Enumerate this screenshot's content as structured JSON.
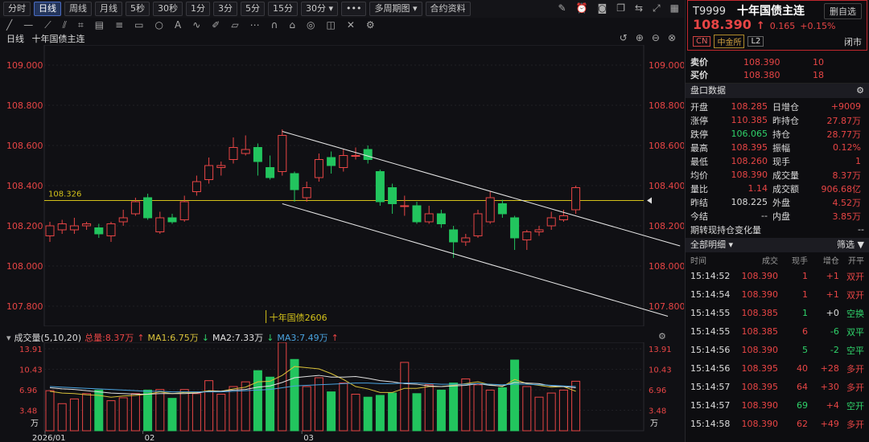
{
  "toolbar": {
    "buttons": [
      "分时",
      "日线",
      "周线",
      "月线",
      "5秒",
      "30秒",
      "1分",
      "3分",
      "5分",
      "15分",
      "30分 ▾",
      "•••",
      "多周期图 ▾",
      "合约资料"
    ],
    "active_index": 1
  },
  "chart_title": {
    "period": "日线",
    "name": "十年国债主连"
  },
  "colors": {
    "up": "#e84545",
    "down": "#22c55e",
    "accent": "#4a6cc2",
    "hline": "#d4c21a"
  },
  "chart_data": {
    "type": "candlestick",
    "y_ticks": [
      "109.000",
      "108.800",
      "108.600",
      "108.400",
      "108.200",
      "108.000",
      "107.800"
    ],
    "y_tick_values": [
      109.0,
      108.8,
      108.6,
      108.4,
      108.2,
      108.0,
      107.8
    ],
    "ylim": [
      107.7,
      109.1
    ],
    "x_labels": [
      {
        "label": "2026/01",
        "index": 0
      },
      {
        "label": "02",
        "index": 8
      },
      {
        "label": "03",
        "index": 21
      }
    ],
    "hline": {
      "value": 108.326,
      "label": "108.326"
    },
    "contract_marker": {
      "label": "十年国债2606",
      "index": 18
    },
    "candles": [
      {
        "o": 108.15,
        "c": 108.2,
        "h": 108.22,
        "l": 108.12
      },
      {
        "o": 108.18,
        "c": 108.21,
        "h": 108.23,
        "l": 108.16
      },
      {
        "o": 108.18,
        "c": 108.2,
        "h": 108.24,
        "l": 108.16
      },
      {
        "o": 108.2,
        "c": 108.21,
        "h": 108.22,
        "l": 108.18
      },
      {
        "o": 108.19,
        "c": 108.16,
        "h": 108.21,
        "l": 108.14
      },
      {
        "o": 108.15,
        "c": 108.21,
        "h": 108.22,
        "l": 108.12
      },
      {
        "o": 108.22,
        "c": 108.24,
        "h": 108.28,
        "l": 108.2
      },
      {
        "o": 108.26,
        "c": 108.32,
        "h": 108.34,
        "l": 108.25
      },
      {
        "o": 108.34,
        "c": 108.24,
        "h": 108.36,
        "l": 108.23
      },
      {
        "o": 108.17,
        "c": 108.24,
        "h": 108.27,
        "l": 108.16
      },
      {
        "o": 108.24,
        "c": 108.22,
        "h": 108.26,
        "l": 108.21
      },
      {
        "o": 108.23,
        "c": 108.32,
        "h": 108.35,
        "l": 108.22
      },
      {
        "o": 108.37,
        "c": 108.42,
        "h": 108.45,
        "l": 108.35
      },
      {
        "o": 108.43,
        "c": 108.5,
        "h": 108.54,
        "l": 108.41
      },
      {
        "o": 108.49,
        "c": 108.5,
        "h": 108.52,
        "l": 108.45
      },
      {
        "o": 108.53,
        "c": 108.59,
        "h": 108.64,
        "l": 108.51
      },
      {
        "o": 108.56,
        "c": 108.58,
        "h": 108.65,
        "l": 108.55
      },
      {
        "o": 108.59,
        "c": 108.52,
        "h": 108.61,
        "l": 108.45
      },
      {
        "o": 108.49,
        "c": 108.44,
        "h": 108.55,
        "l": 108.43
      },
      {
        "o": 108.47,
        "c": 108.65,
        "h": 108.68,
        "l": 108.45
      },
      {
        "o": 108.46,
        "c": 108.38,
        "h": 108.47,
        "l": 108.32
      },
      {
        "o": 108.34,
        "c": 108.39,
        "h": 108.42,
        "l": 108.32
      },
      {
        "o": 108.44,
        "c": 108.53,
        "h": 108.56,
        "l": 108.42
      },
      {
        "o": 108.54,
        "c": 108.5,
        "h": 108.57,
        "l": 108.46
      },
      {
        "o": 108.49,
        "c": 108.55,
        "h": 108.58,
        "l": 108.47
      },
      {
        "o": 108.55,
        "c": 108.55,
        "h": 108.59,
        "l": 108.53
      },
      {
        "o": 108.58,
        "c": 108.53,
        "h": 108.6,
        "l": 108.51
      },
      {
        "o": 108.47,
        "c": 108.32,
        "h": 108.48,
        "l": 108.3
      },
      {
        "o": 108.39,
        "c": 108.31,
        "h": 108.41,
        "l": 108.26
      },
      {
        "o": 108.3,
        "c": 108.3,
        "h": 108.35,
        "l": 108.25
      },
      {
        "o": 108.3,
        "c": 108.22,
        "h": 108.32,
        "l": 108.21
      },
      {
        "o": 108.22,
        "c": 108.26,
        "h": 108.3,
        "l": 108.21
      },
      {
        "o": 108.26,
        "c": 108.21,
        "h": 108.28,
        "l": 108.19
      },
      {
        "o": 108.18,
        "c": 108.12,
        "h": 108.2,
        "l": 108.04
      },
      {
        "o": 108.12,
        "c": 108.14,
        "h": 108.16,
        "l": 108.1
      },
      {
        "o": 108.15,
        "c": 108.26,
        "h": 108.28,
        "l": 108.14
      },
      {
        "o": 108.22,
        "c": 108.34,
        "h": 108.37,
        "l": 108.21
      },
      {
        "o": 108.31,
        "c": 108.26,
        "h": 108.33,
        "l": 108.24
      },
      {
        "o": 108.24,
        "c": 108.14,
        "h": 108.25,
        "l": 108.08
      },
      {
        "o": 108.13,
        "c": 108.17,
        "h": 108.18,
        "l": 108.08
      },
      {
        "o": 108.17,
        "c": 108.18,
        "h": 108.2,
        "l": 108.15
      },
      {
        "o": 108.2,
        "c": 108.24,
        "h": 108.27,
        "l": 108.18
      },
      {
        "o": 108.23,
        "c": 108.25,
        "h": 108.28,
        "l": 108.22
      },
      {
        "o": 108.28,
        "c": 108.39,
        "h": 108.4,
        "l": 108.26
      }
    ],
    "channel": [
      {
        "from": {
          "i": 19,
          "v": 108.67
        },
        "to": {
          "i": 51,
          "v": 108.1
        }
      },
      {
        "from": {
          "i": 19,
          "v": 108.31
        },
        "to": {
          "i": 50,
          "v": 107.75
        }
      }
    ],
    "volume": {
      "label": "成交量(5,10,20)",
      "total_label": "总量:8.37万",
      "ma1": "MA1:6.75万",
      "ma2": "MA2:7.33万",
      "ma3": "MA3:7.49万",
      "y_ticks": [
        "13.91",
        "10.43",
        "6.96",
        "3.48"
      ],
      "y_tick_values": [
        13.91,
        10.43,
        6.96,
        3.48
      ],
      "unit": "万",
      "ylim": [
        0,
        15
      ],
      "values": [
        6.8,
        4.6,
        5.4,
        6.3,
        6.9,
        5.1,
        5.6,
        6.3,
        6.9,
        7.0,
        5.5,
        7.0,
        6.3,
        8.5,
        6.2,
        7.5,
        8.3,
        10.2,
        9.1,
        15.0,
        12.1,
        7.5,
        9.0,
        6.6,
        8.1,
        6.2,
        5.7,
        6.0,
        6.4,
        11.6,
        6.3,
        7.8,
        6.9,
        8.1,
        8.8,
        7.8,
        6.9,
        7.3,
        12.0,
        7.5,
        5.7,
        6.4,
        6.9,
        8.4
      ],
      "ma1_values": [
        6.7,
        6.4,
        6.3,
        6.1,
        6.0,
        5.7,
        5.9,
        6.0,
        6.2,
        6.6,
        6.3,
        6.5,
        6.5,
        6.8,
        6.7,
        7.1,
        7.4,
        8.3,
        8.4,
        9.4,
        10.9,
        10.7,
        10.5,
        9.7,
        8.7,
        7.5,
        7.1,
        6.5,
        6.5,
        7.2,
        7.2,
        7.5,
        7.5,
        7.7,
        8.0,
        8.3,
        7.8,
        7.5,
        8.7,
        8.0,
        7.7,
        7.4,
        7.5,
        6.7
      ],
      "ma2_values": [
        7.3,
        7.1,
        7.0,
        6.8,
        6.6,
        6.4,
        6.3,
        6.2,
        6.2,
        6.3,
        6.3,
        6.3,
        6.4,
        6.7,
        6.7,
        6.9,
        7.0,
        7.4,
        7.6,
        8.2,
        9.0,
        9.2,
        9.4,
        9.1,
        9.1,
        9.2,
        8.9,
        8.5,
        8.3,
        8.0,
        7.9,
        7.6,
        7.5,
        7.6,
        7.7,
        8.0,
        7.7,
        7.6,
        8.2,
        8.1,
        8.0,
        7.6,
        7.5,
        7.3
      ],
      "ma3_values": [
        7.5,
        7.4,
        7.3,
        7.2,
        7.1,
        7.0,
        6.9,
        6.8,
        6.7,
        6.7,
        6.6,
        6.6,
        6.6,
        6.6,
        6.6,
        6.7,
        6.8,
        6.9,
        7.0,
        7.3,
        7.6,
        7.7,
        7.8,
        7.9,
        8.0,
        8.1,
        8.1,
        8.0,
        8.0,
        8.1,
        8.1,
        8.0,
        7.9,
        7.9,
        7.9,
        8.0,
        7.9,
        7.8,
        7.9,
        7.9,
        7.8,
        7.7,
        7.6,
        7.5
      ]
    }
  },
  "quote": {
    "symbol": "T9999",
    "name": "十年国债主连",
    "drag_label": "删自选",
    "last": "108.390",
    "arrow": "↑",
    "change": "0.165",
    "pct": "+0.15%",
    "tags": [
      "CN",
      "中金所",
      "L2"
    ],
    "status": "闭市"
  },
  "orderbook": [
    {
      "label": "卖价",
      "price": "108.390",
      "vol": "10"
    },
    {
      "label": "买价",
      "price": "108.380",
      "vol": "18"
    }
  ],
  "pankou_title": "盘口数据",
  "pankou": [
    [
      "开盘",
      "108.285",
      "red",
      "日增仓",
      "+9009",
      "red"
    ],
    [
      "涨停",
      "110.385",
      "red",
      "昨持仓",
      "27.87万",
      "red"
    ],
    [
      "跌停",
      "106.065",
      "green",
      "持仓",
      "28.77万",
      "red"
    ],
    [
      "最高",
      "108.395",
      "red",
      "振幅",
      "0.12%",
      "red"
    ],
    [
      "最低",
      "108.260",
      "red",
      "现手",
      "1",
      "red"
    ],
    [
      "均价",
      "108.390",
      "red",
      "成交量",
      "8.37万",
      "red"
    ],
    [
      "量比",
      "1.14",
      "red",
      "成交额",
      "906.68亿",
      "red"
    ],
    [
      "昨结",
      "108.225",
      "white",
      "外盘",
      "4.52万",
      "red"
    ],
    [
      "今结",
      "--",
      "white",
      "内盘",
      "3.85万",
      "red"
    ],
    [
      "期转现持仓变化量",
      "",
      "white",
      "",
      "--",
      "white"
    ]
  ],
  "trades_title": "全部明细",
  "filter_label": "筛选",
  "trade_headers": [
    "时间",
    "成交",
    "现手",
    "增仓",
    "开平"
  ],
  "trades": [
    [
      "15:14:52",
      "108.390",
      "1",
      "+1",
      "双开"
    ],
    [
      "15:14:54",
      "108.390",
      "1",
      "+1",
      "双开"
    ],
    [
      "15:14:55",
      "108.385",
      "1",
      "+0",
      "空换"
    ],
    [
      "15:14:55",
      "108.385",
      "6",
      "-6",
      "双平"
    ],
    [
      "15:14:56",
      "108.390",
      "5",
      "-2",
      "空平"
    ],
    [
      "15:14:56",
      "108.395",
      "40",
      "+28",
      "多开"
    ],
    [
      "15:14:57",
      "108.395",
      "64",
      "+30",
      "多开"
    ],
    [
      "15:14:57",
      "108.390",
      "69",
      "+4",
      "空开"
    ],
    [
      "15:14:58",
      "108.390",
      "62",
      "+49",
      "多开"
    ]
  ]
}
